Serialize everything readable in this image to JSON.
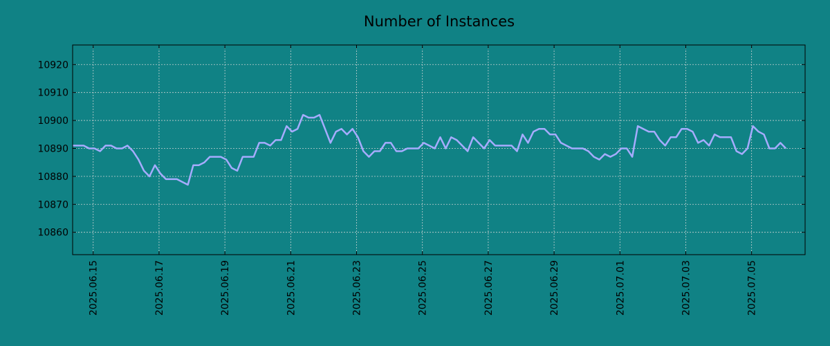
{
  "colors": {
    "background": "#108285",
    "line": "#a6acff",
    "grid": "#c8d2d2",
    "axis": "#000000"
  },
  "chart_data": {
    "type": "line",
    "title": "Number of Instances",
    "xlabel": "",
    "ylabel": "",
    "grid": true,
    "ylim": [
      10852,
      10927
    ],
    "xlim": [
      "2025-06-14 09:00",
      "2025-07-06 15:00"
    ],
    "y_ticks": [
      10860,
      10870,
      10880,
      10890,
      10900,
      10910,
      10920
    ],
    "x_ticks": [
      "2025.06.15",
      "2025.06.17",
      "2025.06.19",
      "2025.06.21",
      "2025.06.23",
      "2025.06.25",
      "2025.06.27",
      "2025.06.29",
      "2025.07.01",
      "2025.07.03",
      "2025.07.05"
    ],
    "series": [
      {
        "values": [
          [
            "2025-06-14 09:00",
            10891
          ],
          [
            "2025-06-14 13:00",
            10891
          ],
          [
            "2025-06-14 17:00",
            10891
          ],
          [
            "2025-06-14 21:00",
            10890
          ],
          [
            "2025-06-15 01:00",
            10890
          ],
          [
            "2025-06-15 05:00",
            10889
          ],
          [
            "2025-06-15 09:00",
            10891
          ],
          [
            "2025-06-15 13:00",
            10891
          ],
          [
            "2025-06-15 17:00",
            10890
          ],
          [
            "2025-06-15 21:00",
            10890
          ],
          [
            "2025-06-16 01:00",
            10891
          ],
          [
            "2025-06-16 05:00",
            10889
          ],
          [
            "2025-06-16 09:00",
            10886
          ],
          [
            "2025-06-16 13:00",
            10882
          ],
          [
            "2025-06-16 17:00",
            10880
          ],
          [
            "2025-06-16 21:00",
            10884
          ],
          [
            "2025-06-17 01:00",
            10881
          ],
          [
            "2025-06-17 05:00",
            10879
          ],
          [
            "2025-06-17 09:00",
            10879
          ],
          [
            "2025-06-17 13:00",
            10879
          ],
          [
            "2025-06-17 17:00",
            10878
          ],
          [
            "2025-06-17 21:00",
            10877
          ],
          [
            "2025-06-18 01:00",
            10884
          ],
          [
            "2025-06-18 05:00",
            10884
          ],
          [
            "2025-06-18 09:00",
            10885
          ],
          [
            "2025-06-18 13:00",
            10887
          ],
          [
            "2025-06-18 17:00",
            10887
          ],
          [
            "2025-06-18 21:00",
            10887
          ],
          [
            "2025-06-19 01:00",
            10886
          ],
          [
            "2025-06-19 05:00",
            10883
          ],
          [
            "2025-06-19 09:00",
            10882
          ],
          [
            "2025-06-19 13:00",
            10887
          ],
          [
            "2025-06-19 17:00",
            10887
          ],
          [
            "2025-06-19 21:00",
            10887
          ],
          [
            "2025-06-20 01:00",
            10892
          ],
          [
            "2025-06-20 05:00",
            10892
          ],
          [
            "2025-06-20 09:00",
            10891
          ],
          [
            "2025-06-20 13:00",
            10893
          ],
          [
            "2025-06-20 17:00",
            10893
          ],
          [
            "2025-06-20 21:00",
            10898
          ],
          [
            "2025-06-21 01:00",
            10896
          ],
          [
            "2025-06-21 05:00",
            10897
          ],
          [
            "2025-06-21 09:00",
            10902
          ],
          [
            "2025-06-21 13:00",
            10901
          ],
          [
            "2025-06-21 17:00",
            10901
          ],
          [
            "2025-06-21 21:00",
            10902
          ],
          [
            "2025-06-22 01:00",
            10897
          ],
          [
            "2025-06-22 05:00",
            10892
          ],
          [
            "2025-06-22 09:00",
            10896
          ],
          [
            "2025-06-22 13:00",
            10897
          ],
          [
            "2025-06-22 17:00",
            10895
          ],
          [
            "2025-06-22 21:00",
            10897
          ],
          [
            "2025-06-23 01:00",
            10894
          ],
          [
            "2025-06-23 05:00",
            10889
          ],
          [
            "2025-06-23 09:00",
            10887
          ],
          [
            "2025-06-23 13:00",
            10889
          ],
          [
            "2025-06-23 17:00",
            10889
          ],
          [
            "2025-06-23 21:00",
            10892
          ],
          [
            "2025-06-24 01:00",
            10892
          ],
          [
            "2025-06-24 05:00",
            10889
          ],
          [
            "2025-06-24 09:00",
            10889
          ],
          [
            "2025-06-24 13:00",
            10890
          ],
          [
            "2025-06-24 17:00",
            10890
          ],
          [
            "2025-06-24 21:00",
            10890
          ],
          [
            "2025-06-25 01:00",
            10892
          ],
          [
            "2025-06-25 05:00",
            10891
          ],
          [
            "2025-06-25 09:00",
            10890
          ],
          [
            "2025-06-25 13:00",
            10894
          ],
          [
            "2025-06-25 17:00",
            10890
          ],
          [
            "2025-06-25 21:00",
            10894
          ],
          [
            "2025-06-26 01:00",
            10893
          ],
          [
            "2025-06-26 05:00",
            10891
          ],
          [
            "2025-06-26 09:00",
            10889
          ],
          [
            "2025-06-26 13:00",
            10894
          ],
          [
            "2025-06-26 17:00",
            10892
          ],
          [
            "2025-06-26 21:00",
            10890
          ],
          [
            "2025-06-27 01:00",
            10893
          ],
          [
            "2025-06-27 05:00",
            10891
          ],
          [
            "2025-06-27 09:00",
            10891
          ],
          [
            "2025-06-27 13:00",
            10891
          ],
          [
            "2025-06-27 17:00",
            10891
          ],
          [
            "2025-06-27 21:00",
            10889
          ],
          [
            "2025-06-28 01:00",
            10895
          ],
          [
            "2025-06-28 05:00",
            10892
          ],
          [
            "2025-06-28 09:00",
            10896
          ],
          [
            "2025-06-28 13:00",
            10897
          ],
          [
            "2025-06-28 17:00",
            10897
          ],
          [
            "2025-06-28 21:00",
            10895
          ],
          [
            "2025-06-29 01:00",
            10895
          ],
          [
            "2025-06-29 05:00",
            10892
          ],
          [
            "2025-06-29 09:00",
            10891
          ],
          [
            "2025-06-29 13:00",
            10890
          ],
          [
            "2025-06-29 17:00",
            10890
          ],
          [
            "2025-06-29 21:00",
            10890
          ],
          [
            "2025-06-30 01:00",
            10889
          ],
          [
            "2025-06-30 05:00",
            10887
          ],
          [
            "2025-06-30 09:00",
            10886
          ],
          [
            "2025-06-30 13:00",
            10888
          ],
          [
            "2025-06-30 17:00",
            10887
          ],
          [
            "2025-06-30 21:00",
            10888
          ],
          [
            "2025-07-01 01:00",
            10890
          ],
          [
            "2025-07-01 05:00",
            10890
          ],
          [
            "2025-07-01 09:00",
            10887
          ],
          [
            "2025-07-01 13:00",
            10898
          ],
          [
            "2025-07-01 17:00",
            10897
          ],
          [
            "2025-07-01 21:00",
            10896
          ],
          [
            "2025-07-02 01:00",
            10896
          ],
          [
            "2025-07-02 05:00",
            10893
          ],
          [
            "2025-07-02 09:00",
            10891
          ],
          [
            "2025-07-02 13:00",
            10894
          ],
          [
            "2025-07-02 17:00",
            10894
          ],
          [
            "2025-07-02 21:00",
            10897
          ],
          [
            "2025-07-03 01:00",
            10897
          ],
          [
            "2025-07-03 05:00",
            10896
          ],
          [
            "2025-07-03 09:00",
            10892
          ],
          [
            "2025-07-03 13:00",
            10893
          ],
          [
            "2025-07-03 17:00",
            10891
          ],
          [
            "2025-07-03 21:00",
            10895
          ],
          [
            "2025-07-04 01:00",
            10894
          ],
          [
            "2025-07-04 05:00",
            10894
          ],
          [
            "2025-07-04 09:00",
            10894
          ],
          [
            "2025-07-04 13:00",
            10889
          ],
          [
            "2025-07-04 17:00",
            10888
          ],
          [
            "2025-07-04 21:00",
            10890
          ],
          [
            "2025-07-05 01:00",
            10898
          ],
          [
            "2025-07-05 05:00",
            10896
          ],
          [
            "2025-07-05 09:00",
            10895
          ],
          [
            "2025-07-05 13:00",
            10890
          ],
          [
            "2025-07-05 17:00",
            10890
          ],
          [
            "2025-07-05 21:00",
            10892
          ],
          [
            "2025-07-06 01:00",
            10890
          ]
        ]
      }
    ]
  }
}
